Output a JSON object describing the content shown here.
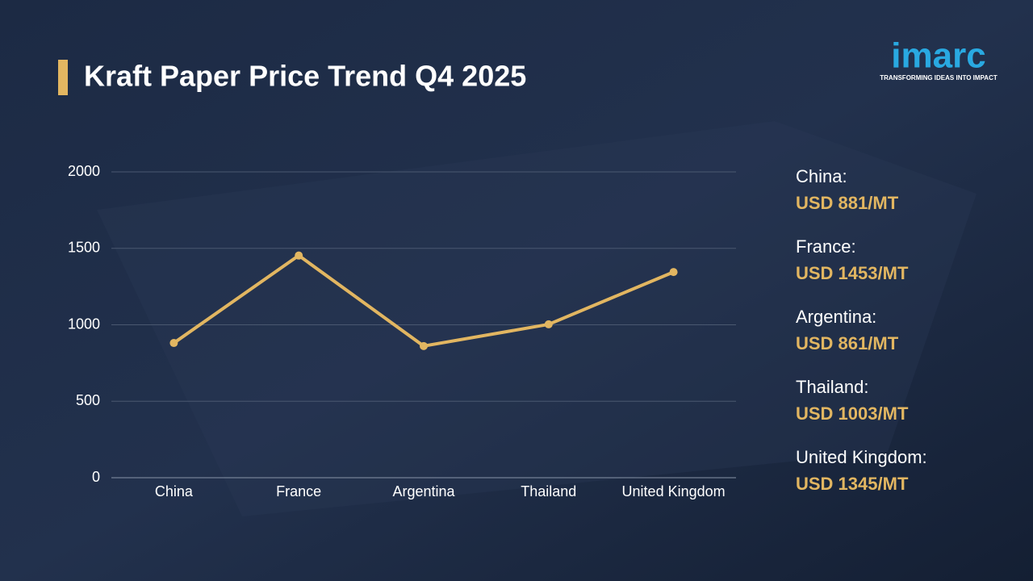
{
  "chart_data": {
    "type": "line",
    "title": "Kraft Paper Price Trend Q4 2025",
    "categories": [
      "China",
      "France",
      "Argentina",
      "Thailand",
      "United Kingdom"
    ],
    "values": [
      881,
      1453,
      861,
      1003,
      1345
    ],
    "value_labels": [
      "USD 881/MT",
      "USD 1453/MT",
      "USD 861/MT",
      "USD 1003/MT",
      "USD 1345/MT"
    ],
    "side_labels": [
      "China:",
      "France:",
      "Argentina:",
      "Thailand:",
      "United Kingdom:"
    ],
    "color": "#e2b661",
    "ylim": [
      0,
      2000
    ],
    "yticks": [
      0,
      500,
      1000,
      1500,
      2000
    ],
    "grid": true
  },
  "logo": {
    "name": "imarc",
    "tagline": "TRANSFORMING IDEAS INTO IMPACT"
  }
}
